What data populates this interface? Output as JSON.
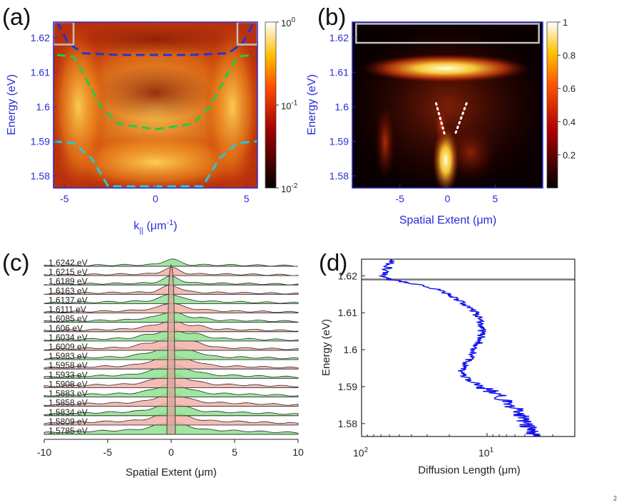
{
  "panel_labels": [
    "(a)",
    "(b)",
    "(c)",
    "(d)"
  ],
  "corner_mark": "2",
  "colors": {
    "axis_blue": "#2b2bd6",
    "curve_blue": "#2233dd",
    "curve_green": "#22cc44",
    "curve_cyan": "#22c8dd",
    "dots_white": "#ffffff",
    "box_gray": "#c0c0c0",
    "profile_green": "#8fe08f",
    "profile_red": "#f2b0a8",
    "diffusion_blue": "#1010ee"
  },
  "chart_data": [
    {
      "panel": "(a)",
      "type": "heatmap",
      "xlabel": "k",
      "xlabel_sub": "||",
      "xlabel_unit": " (μm",
      "xlabel_unit_sup": "-1",
      "xlabel_close": ")",
      "ylabel": "Energy (eV)",
      "xlim": [
        -5.6,
        5.6
      ],
      "ylim": [
        1.5765,
        1.6245
      ],
      "xticks": [
        -5,
        0,
        5
      ],
      "xtick_labels": [
        "-5",
        "0",
        "5"
      ],
      "yticks": [
        1.58,
        1.59,
        1.6,
        1.61,
        1.62
      ],
      "ytick_labels": [
        "1.58",
        "1.59",
        "1.6",
        "1.61",
        "1.62"
      ],
      "colorbar": {
        "scale": "log",
        "range": [
          0.01,
          1
        ],
        "labels": [
          {
            "value": 1,
            "base": "10",
            "exp": "0"
          },
          {
            "value": 0.1,
            "base": "10",
            "exp": "-1"
          },
          {
            "value": 0.01,
            "base": "10",
            "exp": "-2"
          }
        ]
      },
      "dispersion_curves": [
        {
          "name": "upper",
          "color": "#2233dd",
          "x": [
            -5.4,
            -4.8,
            -4.0,
            -2.0,
            0,
            2.0,
            4.0,
            4.8,
            5.4
          ],
          "y": [
            1.6245,
            1.6185,
            1.6155,
            1.615,
            1.615,
            1.615,
            1.6155,
            1.6185,
            1.6245
          ]
        },
        {
          "name": "middle",
          "color": "#22cc44",
          "x": [
            -5.4,
            -4.5,
            -4.0,
            -3.0,
            -2.0,
            0,
            2.0,
            3.0,
            4.0,
            4.5,
            5.4
          ],
          "y": [
            1.615,
            1.6145,
            1.61,
            1.6,
            1.595,
            1.5935,
            1.595,
            1.6,
            1.61,
            1.6145,
            1.615
          ]
        },
        {
          "name": "lower",
          "color": "#22c8dd",
          "x": [
            -5.6,
            -4.5,
            -3.5,
            -2.6,
            2.6,
            3.5,
            4.5,
            5.6
          ],
          "y": [
            1.59,
            1.5895,
            1.585,
            1.577,
            1.577,
            1.585,
            1.5895,
            1.59
          ]
        }
      ],
      "boxes": [
        {
          "x": [
            -5.6,
            -4.5
          ],
          "y": [
            1.618,
            1.6245
          ]
        },
        {
          "x": [
            4.5,
            5.6
          ],
          "y": [
            1.618,
            1.6245
          ]
        }
      ]
    },
    {
      "panel": "(b)",
      "type": "heatmap",
      "xlabel": "Spatial Extent (μm)",
      "ylabel": "Energy (eV)",
      "xlim": [
        -10,
        10
      ],
      "ylim": [
        1.5765,
        1.6245
      ],
      "xticks": [
        -5,
        0,
        5
      ],
      "xtick_labels": [
        "-5",
        "0",
        "5"
      ],
      "yticks": [
        1.58,
        1.59,
        1.6,
        1.61,
        1.62
      ],
      "ytick_labels": [
        "1.58",
        "1.59",
        "1.6",
        "1.61",
        "1.62"
      ],
      "colorbar": {
        "scale": "linear",
        "range": [
          0,
          1
        ],
        "ticks": [
          0.2,
          0.4,
          0.6,
          0.8,
          1
        ],
        "tick_labels": [
          "0.2",
          "0.4",
          "0.6",
          "0.8",
          "1"
        ]
      },
      "box": {
        "x": [
          -9.6,
          9.6
        ],
        "y": [
          1.6185,
          1.624
        ]
      },
      "dotted_lines": [
        {
          "x": [
            -1.2,
            -0.3
          ],
          "y": [
            1.601,
            1.592
          ]
        },
        {
          "x": [
            2.0,
            0.8
          ],
          "y": [
            1.601,
            1.592
          ]
        }
      ]
    },
    {
      "panel": "(c)",
      "type": "line",
      "xlabel": "Spatial Extent (μm)",
      "xlim": [
        -10,
        10
      ],
      "xticks": [
        -10,
        -5,
        0,
        5,
        10
      ],
      "xtick_labels": [
        "-10",
        "-5",
        "0",
        "5",
        "10"
      ],
      "series": [
        {
          "name": "1.6242 eV",
          "energy": 1.6242
        },
        {
          "name": "1.6215 eV",
          "energy": 1.6215
        },
        {
          "name": "1.6189 eV",
          "energy": 1.6189
        },
        {
          "name": "1.6163 eV",
          "energy": 1.6163
        },
        {
          "name": "1.6137 eV",
          "energy": 1.6137
        },
        {
          "name": "1.6111 eV",
          "energy": 1.6111
        },
        {
          "name": "1.6085 eV",
          "energy": 1.6085
        },
        {
          "name": "1.606 eV",
          "energy": 1.606
        },
        {
          "name": "1.6034 eV",
          "energy": 1.6034
        },
        {
          "name": "1.6009 eV",
          "energy": 1.6009
        },
        {
          "name": "1.5983 eV",
          "energy": 1.5983
        },
        {
          "name": "1.5958 eV",
          "energy": 1.5958
        },
        {
          "name": "1.5933 eV",
          "energy": 1.5933
        },
        {
          "name": "1.5908 eV",
          "energy": 1.5908
        },
        {
          "name": "1.5883 eV",
          "energy": 1.5883
        },
        {
          "name": "1.5858 eV",
          "energy": 1.5858
        },
        {
          "name": "1.5834 eV",
          "energy": 1.5834
        },
        {
          "name": "1.5809 eV",
          "energy": 1.5809
        },
        {
          "name": "1.5785 eV",
          "energy": 1.5785
        }
      ]
    },
    {
      "panel": "(d)",
      "type": "line",
      "xlabel": "Diffusion Length (μm)",
      "ylabel": "Energy (eV)",
      "xscale": "log",
      "xaxis_reversed": true,
      "xlim": [
        100,
        2
      ],
      "ylim": [
        1.5765,
        1.6245
      ],
      "xtick_labels": [
        {
          "value": 100,
          "base": "10",
          "exp": "2"
        },
        {
          "value": 10,
          "base": "10",
          "exp": "1"
        }
      ],
      "yticks": [
        1.58,
        1.59,
        1.6,
        1.61,
        1.62
      ],
      "ytick_labels": [
        "1.58",
        "1.59",
        "1.6",
        "1.61",
        "1.62"
      ],
      "hline": 1.619,
      "series": [
        {
          "name": "diffusion length",
          "color": "#1010ee",
          "energy": [
            1.5765,
            1.578,
            1.58,
            1.582,
            1.584,
            1.586,
            1.588,
            1.59,
            1.592,
            1.594,
            1.596,
            1.598,
            1.6,
            1.602,
            1.604,
            1.606,
            1.608,
            1.61,
            1.612,
            1.614,
            1.616,
            1.618,
            1.619,
            1.62,
            1.622,
            1.6245
          ],
          "length": [
            4.2,
            4.5,
            4.8,
            5.3,
            6.0,
            7.0,
            8.5,
            11.0,
            14.5,
            16.5,
            15.0,
            13.5,
            12.5,
            11.5,
            11.0,
            11.0,
            11.5,
            12.5,
            14.5,
            18.0,
            23.0,
            40.0,
            60.0,
            70.0,
            62.0,
            58.0
          ]
        }
      ]
    }
  ]
}
